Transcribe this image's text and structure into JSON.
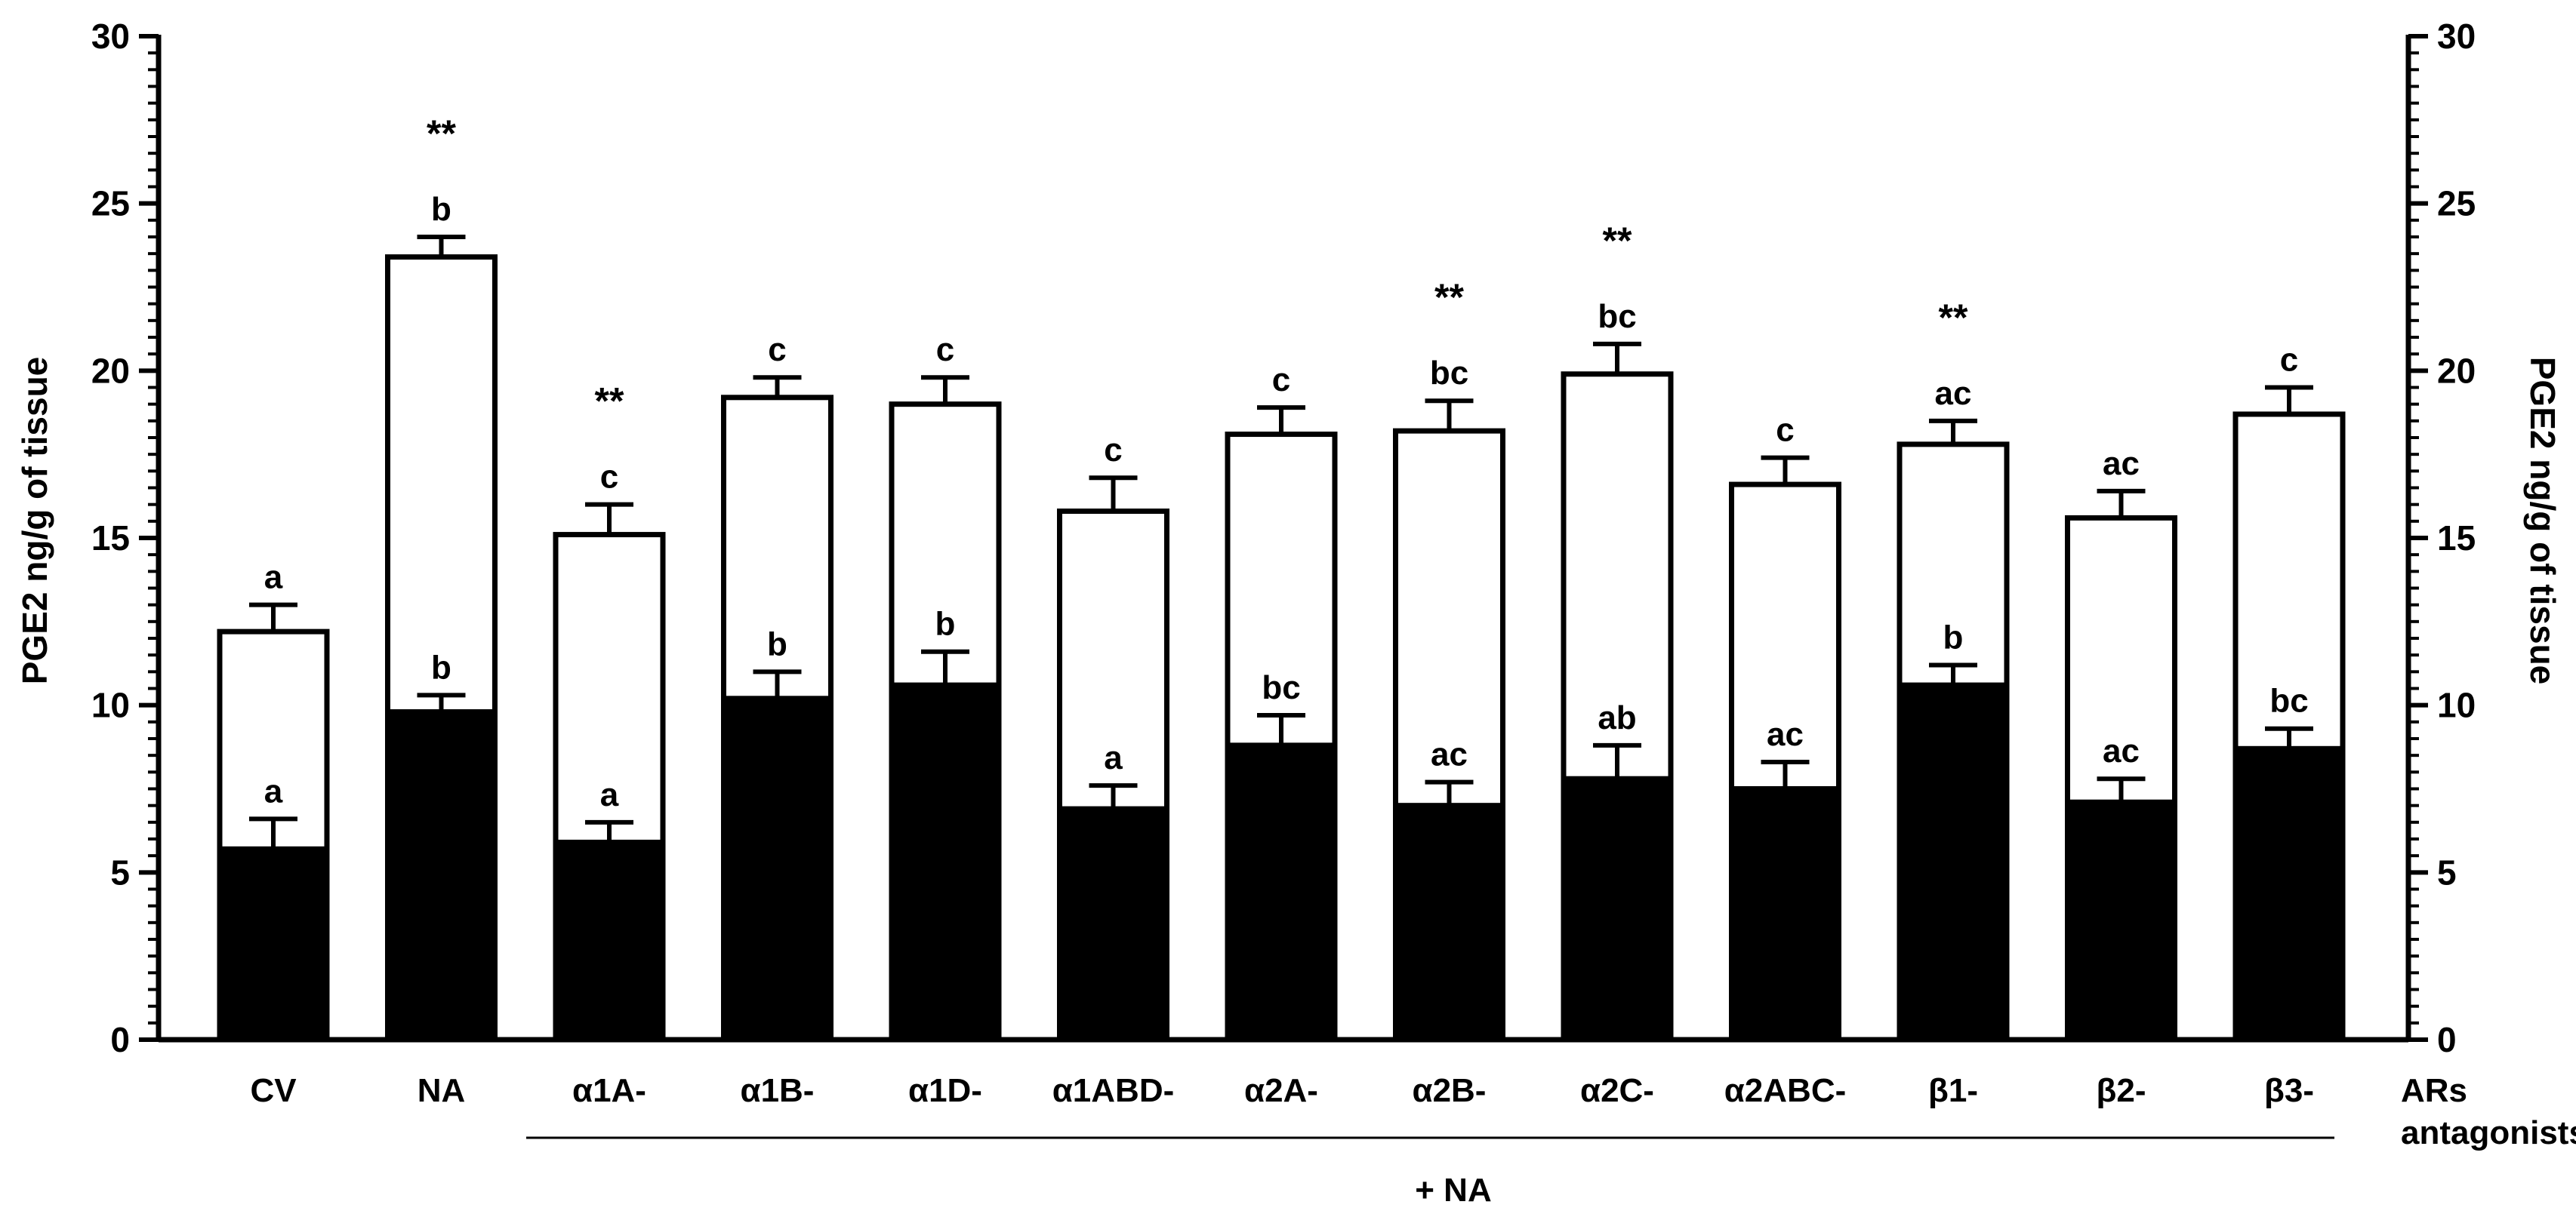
{
  "chart_data": {
    "type": "bar",
    "bar_mode": "overlay",
    "categories": [
      "CV",
      "NA",
      "α1A-",
      "α1B-",
      "α1D-",
      "α1ABD-",
      "α2A-",
      "α2B-",
      "α2C-",
      "α2ABC-",
      "β1-",
      "β2-",
      "β3-"
    ],
    "series": [
      {
        "fill": "#ffffff",
        "values": [
          12.2,
          23.4,
          15.1,
          19.2,
          19.0,
          15.8,
          18.1,
          18.2,
          19.9,
          16.6,
          17.8,
          15.6,
          18.7
        ],
        "errors": [
          0.8,
          0.6,
          0.9,
          0.6,
          0.8,
          1.0,
          0.8,
          0.9,
          0.9,
          0.8,
          0.7,
          0.8,
          0.8
        ],
        "letters": [
          "a",
          "b",
          "c",
          "c",
          "c",
          "c",
          "c",
          "bc",
          "bc",
          "c",
          "ac",
          "ac",
          "c"
        ],
        "stars": [
          "",
          "**",
          "**",
          "",
          "",
          "",
          "",
          "**",
          "**",
          "",
          "**",
          "",
          ""
        ]
      },
      {
        "fill": "#000000",
        "values": [
          5.7,
          9.8,
          5.9,
          10.2,
          10.6,
          6.9,
          8.8,
          7.0,
          7.8,
          7.5,
          10.6,
          7.1,
          8.7
        ],
        "errors": [
          0.9,
          0.5,
          0.6,
          0.8,
          1.0,
          0.7,
          0.9,
          0.7,
          1.0,
          0.8,
          0.6,
          0.7,
          0.6
        ],
        "letters": [
          "a",
          "b",
          "a",
          "b",
          "b",
          "a",
          "bc",
          "ac",
          "ab",
          "ac",
          "b",
          "ac",
          "bc"
        ]
      }
    ],
    "ylabel": "PGE2 ng/g of tissue",
    "ylabel_right": "PGE2 ng/g of tissue",
    "ylim": [
      0,
      30
    ],
    "yticks": [
      0,
      5,
      10,
      15,
      20,
      25,
      30
    ],
    "group_label": "+ NA",
    "group_range": [
      "α1A-",
      "β3-"
    ],
    "side_label_lines": [
      "ARs",
      "antagonists"
    ],
    "grid": false,
    "legend": "none"
  }
}
